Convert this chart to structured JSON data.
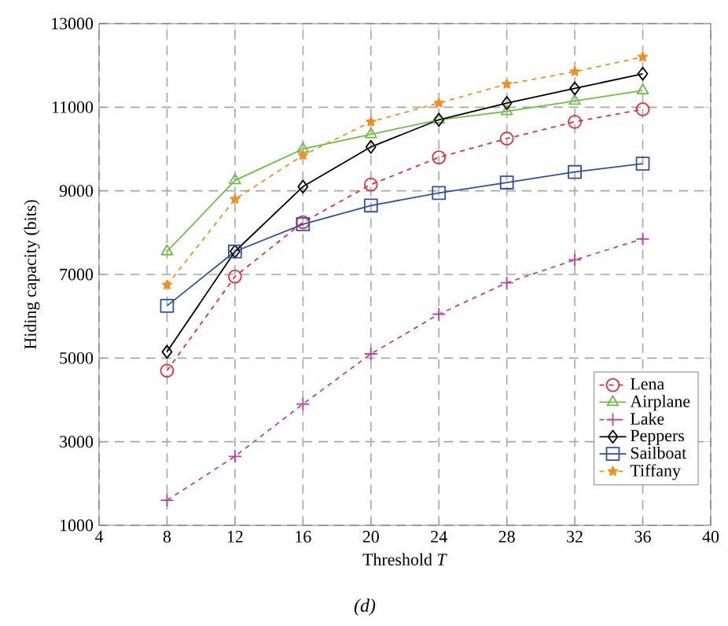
{
  "chart_data": {
    "type": "line",
    "xlabel": "Threshold *T*",
    "ylabel": "Hiding capacity (bits)",
    "x": [
      8,
      12,
      16,
      20,
      24,
      28,
      32,
      36
    ],
    "xlim": [
      4,
      40
    ],
    "xticks": [
      4,
      8,
      12,
      16,
      20,
      24,
      28,
      32,
      36,
      40
    ],
    "ylim": [
      1000,
      13000
    ],
    "yticks": [
      1000,
      3000,
      5000,
      7000,
      9000,
      11000,
      13000
    ],
    "grid": true,
    "legend": "bottom right",
    "annotations": [
      "(d)"
    ],
    "series": [
      {
        "name": "Lena",
        "color": "#e0303a",
        "marker": "circle",
        "line_style": "dashed",
        "values": [
          4700,
          6950,
          8250,
          9150,
          9800,
          10250,
          10650,
          10950
        ]
      },
      {
        "name": "Airplane",
        "color": "#6abf40",
        "marker": "triangle",
        "line_style": "solid",
        "values": [
          7550,
          9250,
          10000,
          10350,
          10700,
          10900,
          11150,
          11400
        ]
      },
      {
        "name": "Lake",
        "color": "#c040a0",
        "marker": "cross",
        "line_style": "dashed",
        "values": [
          1600,
          2650,
          3900,
          5100,
          6050,
          6800,
          7350,
          7850
        ]
      },
      {
        "name": "Peppers",
        "color": "#000000",
        "marker": "diamond",
        "line_style": "solid",
        "values": [
          5150,
          7550,
          9100,
          10050,
          10700,
          11100,
          11450,
          11800
        ]
      },
      {
        "name": "Sailboat",
        "color": "#3050a0",
        "marker": "square",
        "line_style": "solid",
        "values": [
          6250,
          7550,
          8200,
          8650,
          8950,
          9200,
          9450,
          9650
        ]
      },
      {
        "name": "Tiffany",
        "color": "#f09020",
        "marker": "star",
        "line_style": "dashed",
        "values": [
          6750,
          8800,
          9850,
          10650,
          11100,
          11550,
          11850,
          12200
        ]
      }
    ]
  }
}
